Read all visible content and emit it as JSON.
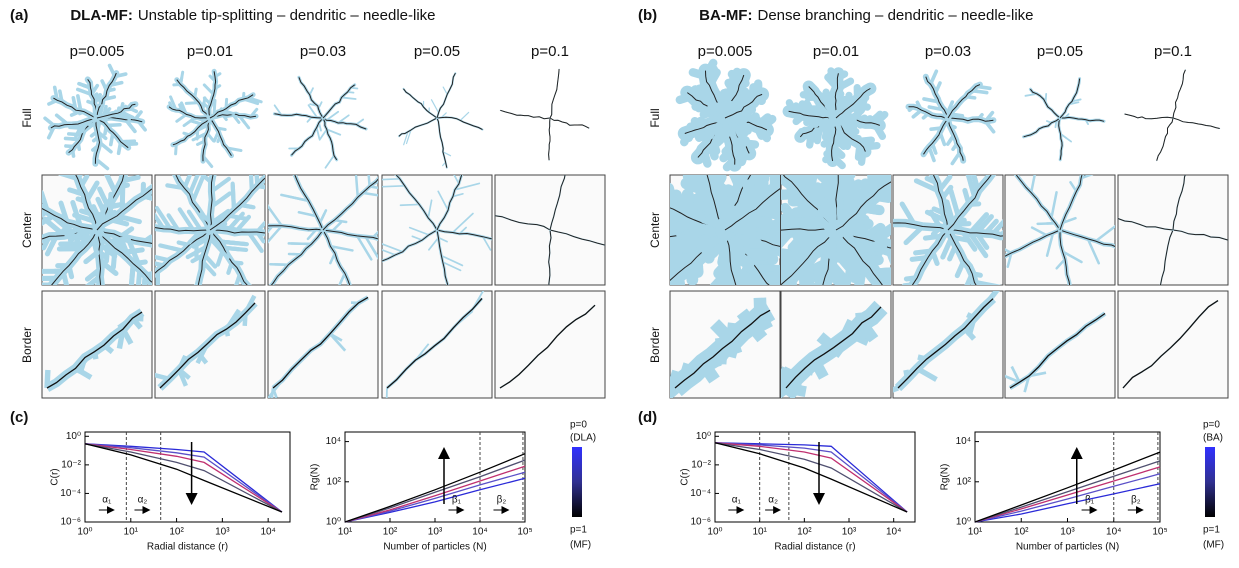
{
  "panels": [
    {
      "label": "(a)",
      "title_bold": "DLA-MF:",
      "title": "Unstable tip-splitting – dendritic – needle-like",
      "columns": [
        "p=0.005",
        "p=0.01",
        "p=0.03",
        "p=0.05",
        "p=0.1"
      ],
      "rows": [
        "Full",
        "Center",
        "Border"
      ],
      "chart_label": "(c)",
      "colorbar": [
        "p=0",
        "(DLA)",
        "p=1",
        "(MF)"
      ]
    },
    {
      "label": "(b)",
      "title_bold": "BA-MF:",
      "title": "Dense branching – dendritic – needle-like",
      "columns": [
        "p=0.005",
        "p=0.01",
        "p=0.03",
        "p=0.05",
        "p=0.1"
      ],
      "rows": [
        "Full",
        "Center",
        "Border"
      ],
      "chart_label": "(d)",
      "colorbar": [
        "p=0",
        "(BA)",
        "p=1",
        "(MF)"
      ]
    }
  ],
  "chart_data": [
    {
      "type": "line",
      "log": true,
      "xlabel": "Radial distance (r)",
      "ylabel": "C(r)",
      "xlim": [
        1,
        30000
      ],
      "ylim": [
        1e-06,
        2
      ],
      "xticks": [
        {
          "value": 1,
          "label": "10⁰"
        },
        {
          "value": 10,
          "label": "10¹"
        },
        {
          "value": 100,
          "label": "10²"
        },
        {
          "value": 1000,
          "label": "10³"
        },
        {
          "value": 10000,
          "label": "10⁴"
        }
      ],
      "yticks": [
        {
          "value": 1e-06,
          "label": "10⁻⁶"
        },
        {
          "value": 0.0001,
          "label": "10⁻⁴"
        },
        {
          "value": 0.01,
          "label": "10⁻²"
        },
        {
          "value": 1,
          "label": "10⁰"
        }
      ],
      "vlines": [
        8,
        45
      ],
      "annotations": [
        {
          "text": "α₁",
          "x": 3
        },
        {
          "text": "α₂",
          "x": 18
        }
      ],
      "x": [
        1,
        10,
        100,
        400,
        20000
      ],
      "series": [
        {
          "color": "#2a2ad8",
          "values": [
            0.3,
            0.2,
            0.12,
            0.08,
            5e-06
          ]
        },
        {
          "color": "#5a50c8",
          "values": [
            0.3,
            0.16,
            0.07,
            0.035,
            5e-06
          ]
        },
        {
          "color": "#c03070",
          "values": [
            0.3,
            0.12,
            0.04,
            0.015,
            5e-06
          ]
        },
        {
          "color": "#505070",
          "values": [
            0.3,
            0.08,
            0.015,
            0.004,
            5e-06
          ]
        },
        {
          "color": "#000000",
          "values": [
            0.3,
            0.05,
            0.005,
            0.0008,
            5e-06
          ]
        }
      ]
    },
    {
      "type": "line",
      "log": true,
      "xlabel": "Number of particles (N)",
      "ylabel": "Rg(N)",
      "xlim": [
        10,
        100000
      ],
      "ylim": [
        1,
        30000
      ],
      "xticks": [
        {
          "value": 10,
          "label": "10¹"
        },
        {
          "value": 100,
          "label": "10²"
        },
        {
          "value": 1000,
          "label": "10³"
        },
        {
          "value": 10000,
          "label": "10⁴"
        },
        {
          "value": 100000,
          "label": "10⁵"
        }
      ],
      "yticks": [
        {
          "value": 1,
          "label": "10⁰"
        },
        {
          "value": 100,
          "label": "10²"
        },
        {
          "value": 10000,
          "label": "10⁴"
        }
      ],
      "vlines": [
        10000,
        90000
      ],
      "annotations": [
        {
          "text": "β₁",
          "x": 3000
        },
        {
          "text": "β₂",
          "x": 30000
        }
      ],
      "x": [
        10,
        100,
        1000,
        10000,
        100000
      ],
      "series": [
        {
          "color": "#2a2ad8",
          "values": [
            1,
            3,
            10,
            40,
            150
          ]
        },
        {
          "color": "#5a50c8",
          "values": [
            1,
            3.5,
            15,
            70,
            300
          ]
        },
        {
          "color": "#c03070",
          "values": [
            1,
            4,
            20,
            110,
            600
          ]
        },
        {
          "color": "#505070",
          "values": [
            1,
            5,
            30,
            180,
            1200
          ]
        },
        {
          "color": "#000000",
          "values": [
            1,
            6,
            40,
            300,
            2500
          ]
        }
      ]
    },
    {
      "type": "line",
      "log": true,
      "xlabel": "Radial distance (r)",
      "ylabel": "C(r)",
      "xlim": [
        1,
        30000
      ],
      "ylim": [
        1e-06,
        2
      ],
      "xticks": [
        {
          "value": 1,
          "label": "10⁰"
        },
        {
          "value": 10,
          "label": "10¹"
        },
        {
          "value": 100,
          "label": "10²"
        },
        {
          "value": 1000,
          "label": "10³"
        },
        {
          "value": 10000,
          "label": "10⁴"
        }
      ],
      "yticks": [
        {
          "value": 1e-06,
          "label": "10⁻⁶"
        },
        {
          "value": 0.0001,
          "label": "10⁻⁴"
        },
        {
          "value": 0.01,
          "label": "10⁻²"
        },
        {
          "value": 1,
          "label": "10⁰"
        }
      ],
      "vlines": [
        10,
        45
      ],
      "annotations": [
        {
          "text": "α₁",
          "x": 3
        },
        {
          "text": "α₂",
          "x": 20
        }
      ],
      "x": [
        1,
        10,
        100,
        400,
        20000
      ],
      "series": [
        {
          "color": "#2a2ad8",
          "values": [
            0.35,
            0.3,
            0.25,
            0.2,
            5e-06
          ]
        },
        {
          "color": "#5a50c8",
          "values": [
            0.35,
            0.25,
            0.15,
            0.08,
            5e-06
          ]
        },
        {
          "color": "#c03070",
          "values": [
            0.35,
            0.2,
            0.08,
            0.03,
            5e-06
          ]
        },
        {
          "color": "#505070",
          "values": [
            0.35,
            0.12,
            0.025,
            0.006,
            5e-06
          ]
        },
        {
          "color": "#000000",
          "values": [
            0.35,
            0.06,
            0.006,
            0.001,
            5e-06
          ]
        }
      ]
    },
    {
      "type": "line",
      "log": true,
      "xlabel": "Number of particles (N)",
      "ylabel": "Rg(N)",
      "xlim": [
        10,
        100000
      ],
      "ylim": [
        1,
        30000
      ],
      "xticks": [
        {
          "value": 10,
          "label": "10¹"
        },
        {
          "value": 100,
          "label": "10²"
        },
        {
          "value": 1000,
          "label": "10³"
        },
        {
          "value": 10000,
          "label": "10⁴"
        },
        {
          "value": 100000,
          "label": "10⁵"
        }
      ],
      "yticks": [
        {
          "value": 1,
          "label": "10⁰"
        },
        {
          "value": 100,
          "label": "10²"
        },
        {
          "value": 10000,
          "label": "10⁴"
        }
      ],
      "vlines": [
        10000,
        90000
      ],
      "annotations": [
        {
          "text": "β₁",
          "x": 3000
        },
        {
          "text": "β₂",
          "x": 30000
        }
      ],
      "x": [
        10,
        100,
        1000,
        10000,
        100000
      ],
      "series": [
        {
          "color": "#2a2ad8",
          "values": [
            1,
            2.5,
            8,
            25,
            80
          ]
        },
        {
          "color": "#5a50c8",
          "values": [
            1,
            3.5,
            14,
            60,
            250
          ]
        },
        {
          "color": "#c03070",
          "values": [
            1,
            4.5,
            22,
            110,
            550
          ]
        },
        {
          "color": "#505070",
          "values": [
            1,
            5.5,
            32,
            190,
            1100
          ]
        },
        {
          "color": "#000000",
          "values": [
            1,
            7,
            50,
            380,
            3000
          ]
        }
      ]
    }
  ]
}
